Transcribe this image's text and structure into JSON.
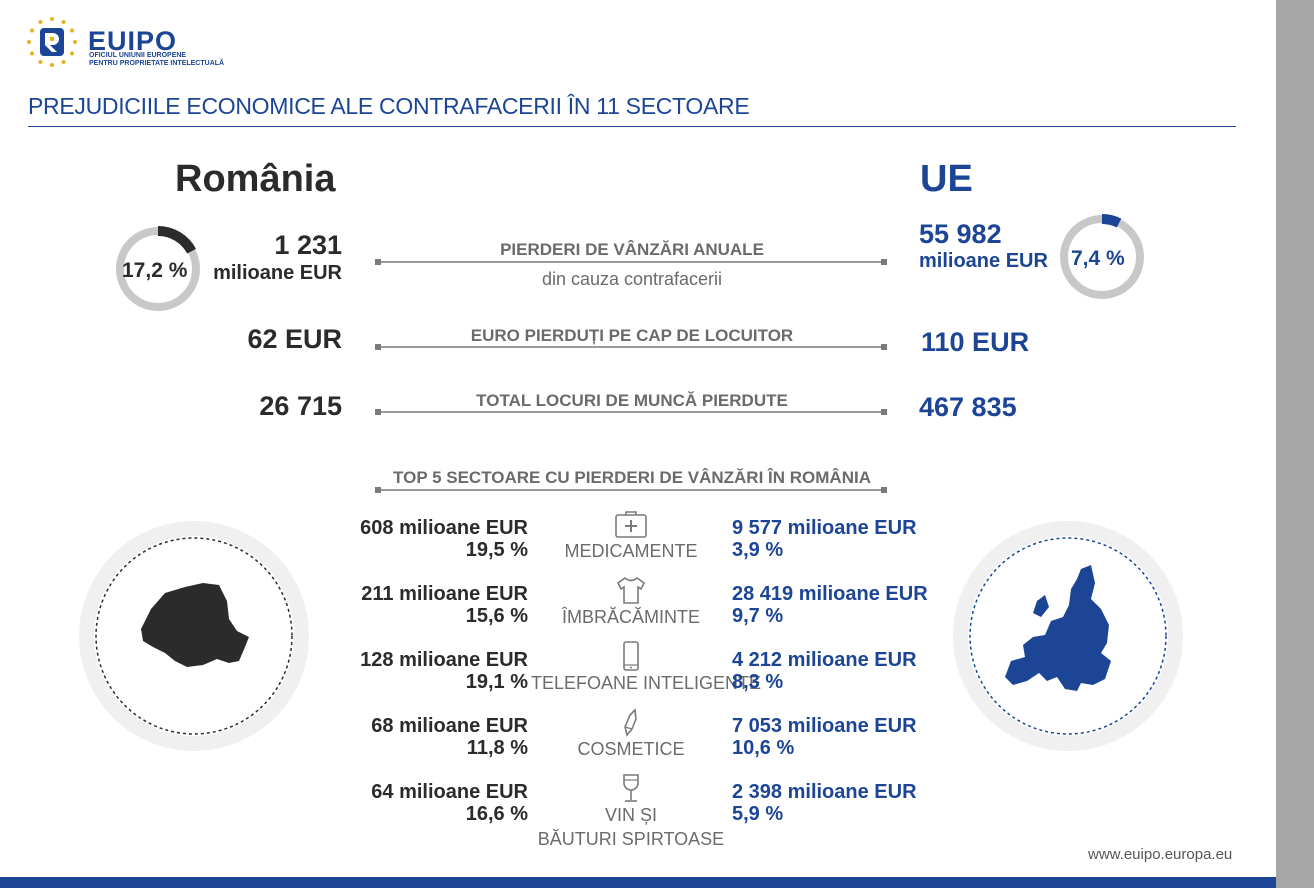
{
  "header": {
    "logo_text": "EUIPO",
    "logo_sub_1": "OFICIUL UNIUNII EUROPENE",
    "logo_sub_2": "PENTRU PROPRIETATE INTELECTUALĂ",
    "title": "PREJUDICIILE ECONOMICE ALE CONTRAFACERII ÎN 11 SECTOARE"
  },
  "romania": {
    "name": "România",
    "share_percent": 17.2,
    "share_label": "17,2 %",
    "sales_loss_value": "1 231",
    "sales_loss_unit": "milioane EUR",
    "per_capita": "62 EUR",
    "jobs_lost": "26 715"
  },
  "eu": {
    "name": "UE",
    "share_percent": 7.4,
    "share_label": "7,4 %",
    "sales_loss_value": "55 982",
    "sales_loss_unit": "milioane EUR",
    "per_capita": "110 EUR",
    "jobs_lost": "467 835"
  },
  "indicators": {
    "sales_title": "PIERDERI DE VÂNZĂRI ANUALE",
    "sales_sub": "din cauza contrafacerii",
    "per_capita_title": "EURO PIERDUȚI PE CAP DE LOCUITOR",
    "jobs_title": "TOTAL LOCURI DE MUNCĂ PIERDUTE"
  },
  "top5": {
    "title": "TOP 5 SECTOARE CU PIERDERI DE VÂNZĂRI ÎN ROMÂNIA",
    "sectors": [
      {
        "icon": "first-aid-kit-icon",
        "name_1": "MEDICAMENTE",
        "name_2": "",
        "ro_value": "608 milioane EUR",
        "ro_pct": "19,5 %",
        "eu_value": "9 577 milioane EUR",
        "eu_pct": "3,9 %"
      },
      {
        "icon": "tshirt-icon",
        "name_1": "ÎMBRĂCĂMINTE",
        "name_2": "",
        "ro_value": "211 milioane EUR",
        "ro_pct": "15,6 %",
        "eu_value": "28 419 milioane EUR",
        "eu_pct": "9,7 %"
      },
      {
        "icon": "smartphone-icon",
        "name_1": "TELEFOANE INTELIGENTE",
        "name_2": "",
        "ro_value": "128 milioane EUR",
        "ro_pct": "19,1 %",
        "eu_value": "4 212 milioane EUR",
        "eu_pct": "8,3 %"
      },
      {
        "icon": "lipstick-icon",
        "name_1": "COSMETICE",
        "name_2": "",
        "ro_value": "68 milioane EUR",
        "ro_pct": "11,8 %",
        "eu_value": "7 053 milioane EUR",
        "eu_pct": "10,6 %"
      },
      {
        "icon": "wine-glass-icon",
        "name_1": "VIN ȘI",
        "name_2": "BĂUTURI SPIRTOASE",
        "ro_value": "64 milioane EUR",
        "ro_pct": "16,6 %",
        "eu_value": "2 398 milioane EUR",
        "eu_pct": "5,9 %"
      }
    ]
  },
  "footer": {
    "url": "www.euipo.europa.eu"
  },
  "colors": {
    "blue": "#1c4595",
    "dark": "#2b2b2b",
    "ring": "#c8c8c8",
    "circle_bg": "#f0f0f0",
    "gold": "#e8b321"
  }
}
